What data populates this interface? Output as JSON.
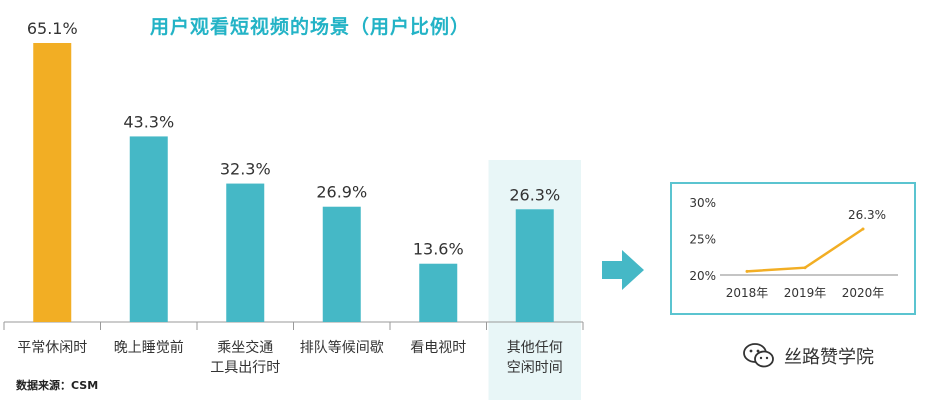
{
  "title": "用户观看短视频的场景（用户比例）",
  "source": "数据来源：CSM",
  "watermark": "丝路赞学院",
  "colors": {
    "highlight": "#f2ae24",
    "bar": "#45b8c6",
    "title": "#23b3c6",
    "highlight_bg": "#e8f6f7"
  },
  "chart_data": [
    {
      "type": "bar",
      "title": "用户观看短视频的场景（用户比例）",
      "categories": [
        "平常休闲时",
        "晚上睡觉前",
        "乘坐交通\n工具出行时",
        "排队等候间歇",
        "看电视时",
        "其他任何\n空闲时间"
      ],
      "values": [
        65.1,
        43.3,
        32.3,
        26.9,
        13.6,
        26.3
      ],
      "value_labels": [
        "65.1%",
        "43.3%",
        "32.3%",
        "26.9%",
        "13.6%",
        "26.3%"
      ],
      "ylim": [
        0,
        70
      ],
      "grid": false,
      "highlight_index": 0,
      "highlight_bg_index": 5
    },
    {
      "type": "line",
      "categories": [
        "2018年",
        "2019年",
        "2020年"
      ],
      "values": [
        20.5,
        21.0,
        26.3
      ],
      "point_labels": [
        "",
        "",
        "26.3%"
      ],
      "yticks": [
        "20%",
        "25%",
        "30%"
      ],
      "ylim": [
        20,
        30
      ],
      "color": "#f2ae24"
    }
  ]
}
